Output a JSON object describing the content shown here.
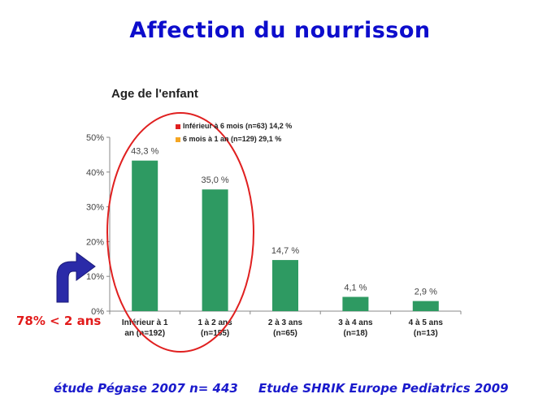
{
  "slide": {
    "title": "Affection du nourrisson",
    "callout": "78% < 2 ans",
    "footer_left": "étude Pégase 2007 n= 443",
    "footer_right": "Etude SHRIK Europe Pediatrics 2009"
  },
  "colors": {
    "bar": "#2e9a62",
    "circle": "#e02020",
    "arrow": "#2a2aa8",
    "legend_red": "#e02020",
    "legend_orange": "#f5a623"
  },
  "chart_data": {
    "type": "bar",
    "title": "Age de l'enfant",
    "categories": [
      [
        "Inférieur à 1",
        "an (n=192)"
      ],
      [
        "1 à 2 ans",
        "(n=155)"
      ],
      [
        "2 à 3 ans",
        "(n=65)"
      ],
      [
        "3 à 4 ans",
        "(n=18)"
      ],
      [
        "4 à 5 ans",
        "(n=13)"
      ]
    ],
    "values": [
      43.3,
      35.0,
      14.7,
      4.1,
      2.9
    ],
    "data_labels": [
      "43,3 %",
      "35,0 %",
      "14,7 %",
      "4,1 %",
      "2,9 %"
    ],
    "y_ticks": [
      0,
      10,
      20,
      30,
      40,
      50
    ],
    "y_tick_labels": [
      "0%",
      "10%",
      "20%",
      "30%",
      "40%",
      "50%"
    ],
    "ylim": [
      0,
      50
    ],
    "grid": false,
    "legend": [
      {
        "label": "Inférieur à 6 mois (n=63) 14,2 %",
        "color": "#e02020"
      },
      {
        "label": "6 mois à 1 an (n=129) 29,1 %",
        "color": "#f5a623"
      }
    ],
    "legend_position": "top-center"
  }
}
